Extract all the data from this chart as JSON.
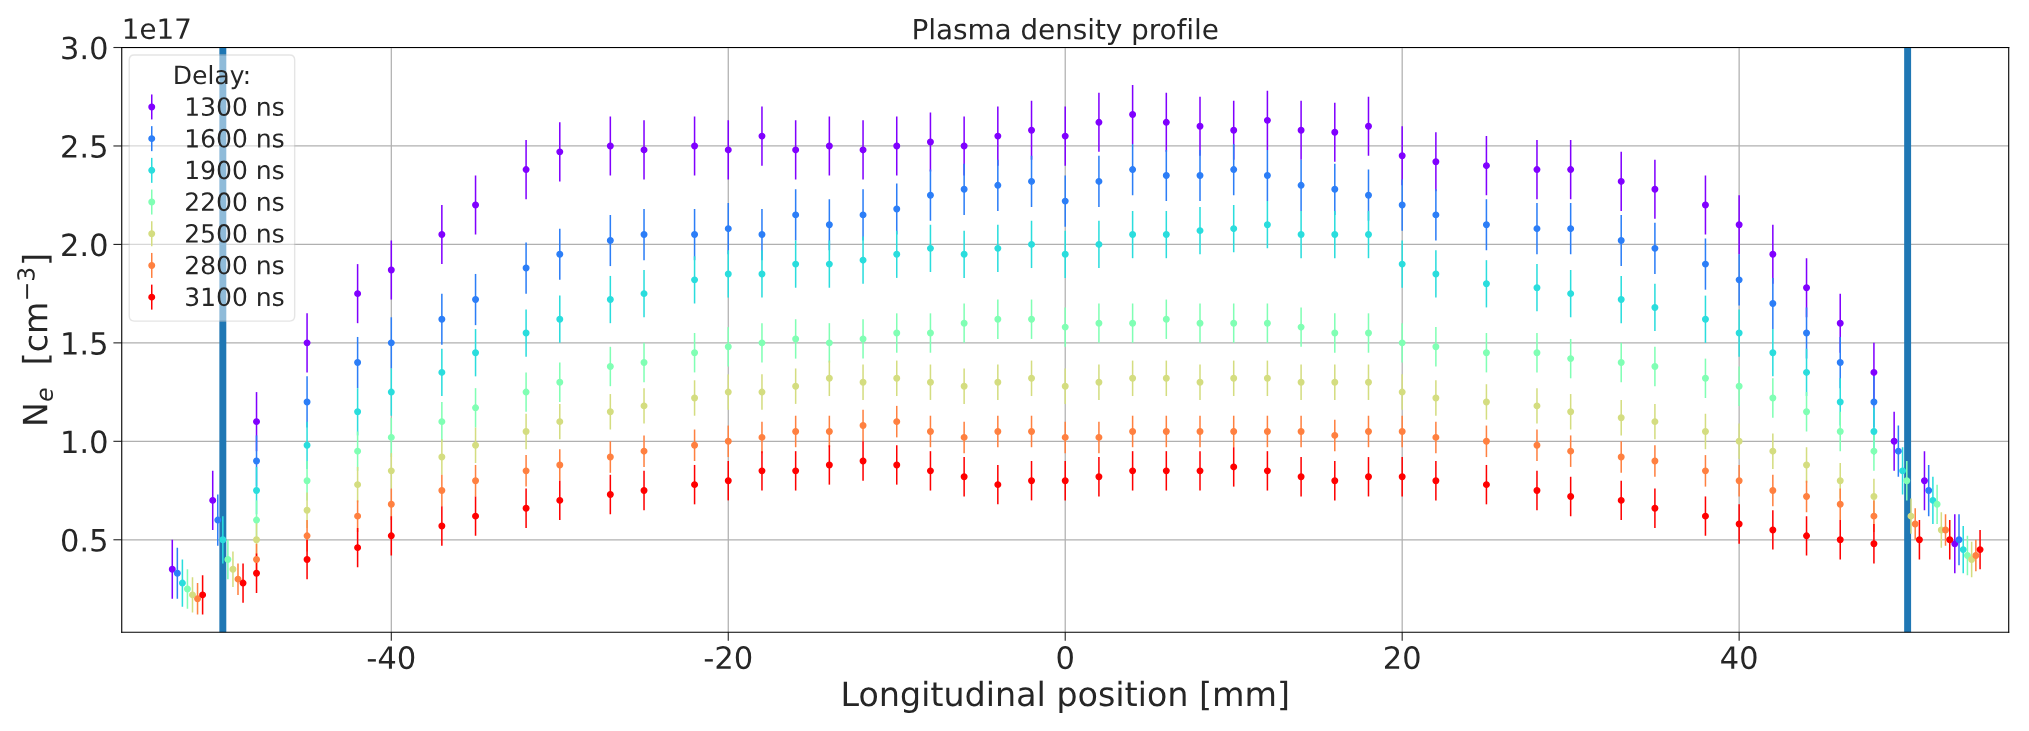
{
  "chart_data": {
    "type": "scatter",
    "title": "Plasma density profile",
    "xlabel": "Longitudinal position [mm]",
    "ylabel": "N$_{e}$  [cm$^{−3}$]",
    "legend_title": "Delay:",
    "annotations": [
      "1e17"
    ],
    "series": [
      {
        "name": "1300 ns",
        "color": "#8000ff",
        "x": [
          -53,
          -50.6,
          -48,
          -45,
          -42,
          -40,
          -37,
          -35,
          -32,
          -30,
          -27,
          -25,
          -22,
          -20,
          -18,
          -16,
          -14,
          -12,
          -10,
          -8,
          -6,
          -4,
          -2,
          0,
          2,
          4,
          6,
          8,
          10,
          12,
          14,
          16,
          18,
          20,
          22,
          25,
          28,
          30,
          33,
          35,
          38,
          40,
          42,
          44,
          46,
          48,
          49.2,
          51,
          52.8
        ],
        "values": [
          0.35,
          0.7,
          1.1,
          1.5,
          1.75,
          1.87,
          2.05,
          2.2,
          2.38,
          2.47,
          2.5,
          2.48,
          2.5,
          2.48,
          2.55,
          2.48,
          2.5,
          2.48,
          2.5,
          2.52,
          2.5,
          2.55,
          2.58,
          2.55,
          2.62,
          2.66,
          2.62,
          2.6,
          2.58,
          2.63,
          2.58,
          2.57,
          2.6,
          2.45,
          2.42,
          2.4,
          2.38,
          2.38,
          2.32,
          2.28,
          2.2,
          2.1,
          1.95,
          1.78,
          1.6,
          1.35,
          1.0,
          0.8,
          0.48
        ],
        "errors": [
          0.15,
          0.15,
          0.15,
          0.15,
          0.15,
          0.15,
          0.15,
          0.15,
          0.15,
          0.15,
          0.15,
          0.15,
          0.15,
          0.15,
          0.15,
          0.15,
          0.15,
          0.15,
          0.15,
          0.15,
          0.15,
          0.15,
          0.15,
          0.15,
          0.15,
          0.15,
          0.15,
          0.15,
          0.15,
          0.15,
          0.15,
          0.15,
          0.15,
          0.15,
          0.15,
          0.15,
          0.15,
          0.15,
          0.15,
          0.15,
          0.15,
          0.15,
          0.15,
          0.15,
          0.15,
          0.15,
          0.15,
          0.15,
          0.15
        ]
      },
      {
        "name": "1600 ns",
        "color": "#2c7ef7",
        "x": [
          -52.7,
          -50.3,
          -48,
          -45,
          -42,
          -40,
          -37,
          -35,
          -32,
          -30,
          -27,
          -25,
          -22,
          -20,
          -18,
          -16,
          -14,
          -12,
          -10,
          -8,
          -6,
          -4,
          -2,
          0,
          2,
          4,
          6,
          8,
          10,
          12,
          14,
          16,
          18,
          20,
          22,
          25,
          28,
          30,
          33,
          35,
          38,
          40,
          42,
          44,
          46,
          48,
          49.45,
          51.25,
          53.05
        ],
        "values": [
          0.33,
          0.6,
          0.9,
          1.2,
          1.4,
          1.5,
          1.62,
          1.72,
          1.88,
          1.95,
          2.02,
          2.05,
          2.05,
          2.08,
          2.05,
          2.15,
          2.1,
          2.15,
          2.18,
          2.25,
          2.28,
          2.3,
          2.32,
          2.22,
          2.32,
          2.38,
          2.35,
          2.35,
          2.38,
          2.35,
          2.3,
          2.28,
          2.25,
          2.2,
          2.15,
          2.1,
          2.08,
          2.08,
          2.02,
          1.98,
          1.9,
          1.82,
          1.7,
          1.55,
          1.4,
          1.2,
          0.95,
          0.75,
          0.5
        ],
        "errors": [
          0.13,
          0.13,
          0.13,
          0.13,
          0.13,
          0.13,
          0.13,
          0.13,
          0.13,
          0.13,
          0.13,
          0.13,
          0.13,
          0.13,
          0.13,
          0.13,
          0.13,
          0.13,
          0.13,
          0.13,
          0.13,
          0.13,
          0.13,
          0.13,
          0.13,
          0.13,
          0.13,
          0.13,
          0.13,
          0.13,
          0.13,
          0.13,
          0.13,
          0.13,
          0.13,
          0.13,
          0.13,
          0.13,
          0.13,
          0.13,
          0.13,
          0.13,
          0.13,
          0.13,
          0.13,
          0.13,
          0.13,
          0.13,
          0.13
        ]
      },
      {
        "name": "1900 ns",
        "color": "#2adddd",
        "x": [
          -52.4,
          -50,
          -48,
          -45,
          -42,
          -40,
          -37,
          -35,
          -32,
          -30,
          -27,
          -25,
          -22,
          -20,
          -18,
          -16,
          -14,
          -12,
          -10,
          -8,
          -6,
          -4,
          -2,
          0,
          2,
          4,
          6,
          8,
          10,
          12,
          14,
          16,
          18,
          20,
          22,
          25,
          28,
          30,
          33,
          35,
          38,
          40,
          42,
          44,
          46,
          48,
          49.7,
          51.5,
          53.3
        ],
        "values": [
          0.28,
          0.5,
          0.75,
          0.98,
          1.15,
          1.25,
          1.35,
          1.45,
          1.55,
          1.62,
          1.72,
          1.75,
          1.82,
          1.85,
          1.85,
          1.9,
          1.9,
          1.92,
          1.95,
          1.98,
          1.95,
          1.98,
          2.0,
          1.95,
          2.0,
          2.05,
          2.05,
          2.07,
          2.08,
          2.1,
          2.05,
          2.05,
          2.05,
          1.9,
          1.85,
          1.8,
          1.78,
          1.75,
          1.72,
          1.68,
          1.62,
          1.55,
          1.45,
          1.35,
          1.2,
          1.05,
          0.85,
          0.7,
          0.45
        ],
        "errors": [
          0.12,
          0.12,
          0.12,
          0.12,
          0.12,
          0.12,
          0.12,
          0.12,
          0.12,
          0.12,
          0.12,
          0.12,
          0.12,
          0.12,
          0.12,
          0.12,
          0.12,
          0.12,
          0.12,
          0.12,
          0.12,
          0.12,
          0.12,
          0.12,
          0.12,
          0.12,
          0.12,
          0.12,
          0.12,
          0.12,
          0.12,
          0.12,
          0.12,
          0.12,
          0.12,
          0.12,
          0.12,
          0.12,
          0.12,
          0.12,
          0.12,
          0.12,
          0.12,
          0.12,
          0.12,
          0.12,
          0.12,
          0.12,
          0.12
        ]
      },
      {
        "name": "2200 ns",
        "color": "#80ffb4",
        "x": [
          -52.1,
          -49.7,
          -48,
          -45,
          -42,
          -40,
          -37,
          -35,
          -32,
          -30,
          -27,
          -25,
          -22,
          -20,
          -18,
          -16,
          -14,
          -12,
          -10,
          -8,
          -6,
          -4,
          -2,
          0,
          2,
          4,
          6,
          8,
          10,
          12,
          14,
          16,
          18,
          20,
          22,
          25,
          28,
          30,
          33,
          35,
          38,
          40,
          42,
          44,
          46,
          48,
          49.95,
          51.75,
          53.55
        ],
        "values": [
          0.25,
          0.4,
          0.6,
          0.8,
          0.95,
          1.02,
          1.1,
          1.17,
          1.25,
          1.3,
          1.38,
          1.4,
          1.45,
          1.48,
          1.5,
          1.52,
          1.5,
          1.52,
          1.55,
          1.55,
          1.6,
          1.62,
          1.62,
          1.58,
          1.6,
          1.6,
          1.62,
          1.6,
          1.6,
          1.6,
          1.58,
          1.55,
          1.55,
          1.5,
          1.48,
          1.45,
          1.45,
          1.42,
          1.4,
          1.38,
          1.32,
          1.28,
          1.22,
          1.15,
          1.05,
          0.95,
          0.8,
          0.68,
          0.42
        ],
        "errors": [
          0.1,
          0.1,
          0.1,
          0.1,
          0.1,
          0.1,
          0.1,
          0.1,
          0.1,
          0.1,
          0.1,
          0.1,
          0.1,
          0.1,
          0.1,
          0.1,
          0.1,
          0.1,
          0.1,
          0.1,
          0.1,
          0.1,
          0.1,
          0.1,
          0.1,
          0.1,
          0.1,
          0.1,
          0.1,
          0.1,
          0.1,
          0.1,
          0.1,
          0.1,
          0.1,
          0.1,
          0.1,
          0.1,
          0.1,
          0.1,
          0.1,
          0.1,
          0.1,
          0.1,
          0.1,
          0.1,
          0.1,
          0.1,
          0.1
        ]
      },
      {
        "name": "2500 ns",
        "color": "#d4dd80",
        "x": [
          -51.8,
          -49.4,
          -48,
          -45,
          -42,
          -40,
          -37,
          -35,
          -32,
          -30,
          -27,
          -25,
          -22,
          -20,
          -18,
          -16,
          -14,
          -12,
          -10,
          -8,
          -6,
          -4,
          -2,
          0,
          2,
          4,
          6,
          8,
          10,
          12,
          14,
          16,
          18,
          20,
          22,
          25,
          28,
          30,
          33,
          35,
          38,
          40,
          42,
          44,
          46,
          48,
          50.2,
          52,
          53.8
        ],
        "values": [
          0.22,
          0.35,
          0.5,
          0.65,
          0.78,
          0.85,
          0.92,
          0.98,
          1.05,
          1.1,
          1.15,
          1.18,
          1.22,
          1.25,
          1.25,
          1.28,
          1.32,
          1.3,
          1.32,
          1.3,
          1.28,
          1.3,
          1.32,
          1.28,
          1.3,
          1.32,
          1.32,
          1.3,
          1.32,
          1.32,
          1.3,
          1.3,
          1.3,
          1.25,
          1.22,
          1.2,
          1.18,
          1.15,
          1.12,
          1.1,
          1.05,
          1.0,
          0.95,
          0.88,
          0.8,
          0.72,
          0.62,
          0.55,
          0.4
        ],
        "errors": [
          0.09,
          0.09,
          0.09,
          0.09,
          0.09,
          0.09,
          0.09,
          0.09,
          0.09,
          0.09,
          0.09,
          0.09,
          0.09,
          0.09,
          0.09,
          0.09,
          0.09,
          0.09,
          0.09,
          0.09,
          0.09,
          0.09,
          0.09,
          0.09,
          0.09,
          0.09,
          0.09,
          0.09,
          0.09,
          0.09,
          0.09,
          0.09,
          0.09,
          0.09,
          0.09,
          0.09,
          0.09,
          0.09,
          0.09,
          0.09,
          0.09,
          0.09,
          0.09,
          0.09,
          0.09,
          0.09,
          0.09,
          0.09,
          0.09
        ]
      },
      {
        "name": "2800 ns",
        "color": "#ff8040",
        "x": [
          -51.5,
          -49.1,
          -48,
          -45,
          -42,
          -40,
          -37,
          -35,
          -32,
          -30,
          -27,
          -25,
          -22,
          -20,
          -18,
          -16,
          -14,
          -12,
          -10,
          -8,
          -6,
          -4,
          -2,
          0,
          2,
          4,
          6,
          8,
          10,
          12,
          14,
          16,
          18,
          20,
          22,
          25,
          28,
          30,
          33,
          35,
          38,
          40,
          42,
          44,
          46,
          48,
          50.45,
          52.25,
          54.05
        ],
        "values": [
          0.2,
          0.3,
          0.4,
          0.52,
          0.62,
          0.68,
          0.75,
          0.8,
          0.85,
          0.88,
          0.92,
          0.95,
          0.98,
          1.0,
          1.02,
          1.05,
          1.05,
          1.08,
          1.1,
          1.05,
          1.02,
          1.05,
          1.05,
          1.02,
          1.02,
          1.05,
          1.05,
          1.05,
          1.05,
          1.05,
          1.05,
          1.03,
          1.05,
          1.05,
          1.02,
          1.0,
          0.98,
          0.95,
          0.92,
          0.9,
          0.85,
          0.8,
          0.75,
          0.72,
          0.68,
          0.62,
          0.58,
          0.55,
          0.42
        ],
        "errors": [
          0.08,
          0.08,
          0.08,
          0.08,
          0.08,
          0.08,
          0.08,
          0.08,
          0.08,
          0.08,
          0.08,
          0.08,
          0.08,
          0.08,
          0.08,
          0.08,
          0.08,
          0.08,
          0.08,
          0.08,
          0.08,
          0.08,
          0.08,
          0.08,
          0.08,
          0.08,
          0.08,
          0.08,
          0.08,
          0.08,
          0.08,
          0.08,
          0.08,
          0.08,
          0.08,
          0.08,
          0.08,
          0.08,
          0.08,
          0.08,
          0.08,
          0.08,
          0.08,
          0.08,
          0.08,
          0.08,
          0.08,
          0.08,
          0.08
        ]
      },
      {
        "name": "3100 ns",
        "color": "#ff0000",
        "x": [
          -51.2,
          -48.8,
          -48,
          -45,
          -42,
          -40,
          -37,
          -35,
          -32,
          -30,
          -27,
          -25,
          -22,
          -20,
          -18,
          -16,
          -14,
          -12,
          -10,
          -8,
          -6,
          -4,
          -2,
          0,
          2,
          4,
          6,
          8,
          10,
          12,
          14,
          16,
          18,
          20,
          22,
          25,
          28,
          30,
          33,
          35,
          38,
          40,
          42,
          44,
          46,
          48,
          50.7,
          52.5,
          54.3
        ],
        "values": [
          0.22,
          0.28,
          0.33,
          0.4,
          0.46,
          0.52,
          0.57,
          0.62,
          0.66,
          0.7,
          0.73,
          0.75,
          0.78,
          0.8,
          0.85,
          0.85,
          0.88,
          0.9,
          0.88,
          0.85,
          0.82,
          0.78,
          0.8,
          0.8,
          0.82,
          0.85,
          0.85,
          0.85,
          0.87,
          0.85,
          0.82,
          0.8,
          0.82,
          0.82,
          0.8,
          0.78,
          0.75,
          0.72,
          0.7,
          0.66,
          0.62,
          0.58,
          0.55,
          0.52,
          0.5,
          0.48,
          0.5,
          0.5,
          0.45
        ],
        "errors": [
          0.1,
          0.1,
          0.1,
          0.1,
          0.1,
          0.1,
          0.1,
          0.1,
          0.1,
          0.1,
          0.1,
          0.1,
          0.1,
          0.1,
          0.1,
          0.1,
          0.1,
          0.1,
          0.1,
          0.1,
          0.1,
          0.1,
          0.1,
          0.1,
          0.1,
          0.1,
          0.1,
          0.1,
          0.1,
          0.1,
          0.1,
          0.1,
          0.1,
          0.1,
          0.1,
          0.1,
          0.1,
          0.1,
          0.1,
          0.1,
          0.1,
          0.1,
          0.1,
          0.1,
          0.1,
          0.1,
          0.1,
          0.1,
          0.1
        ]
      }
    ],
    "ref_lines": [
      {
        "axis": "x",
        "value": -50,
        "color": "#1f77b4"
      },
      {
        "axis": "x",
        "value": 50,
        "color": "#1f77b4"
      }
    ],
    "xlim": [
      -56,
      56
    ],
    "xticks": [
      -40,
      -20,
      0,
      20,
      40
    ],
    "ylim": [
      0.03,
      3.0
    ],
    "yticks": [
      0.5,
      {
        "value": 1,
        "label": "1.0"
      },
      1.5,
      {
        "value": 2,
        "label": "2.0"
      },
      2.5,
      {
        "value": 3,
        "label": "3.0"
      }
    ],
    "grid": true,
    "legend": "top left",
    "marker": "circle"
  }
}
